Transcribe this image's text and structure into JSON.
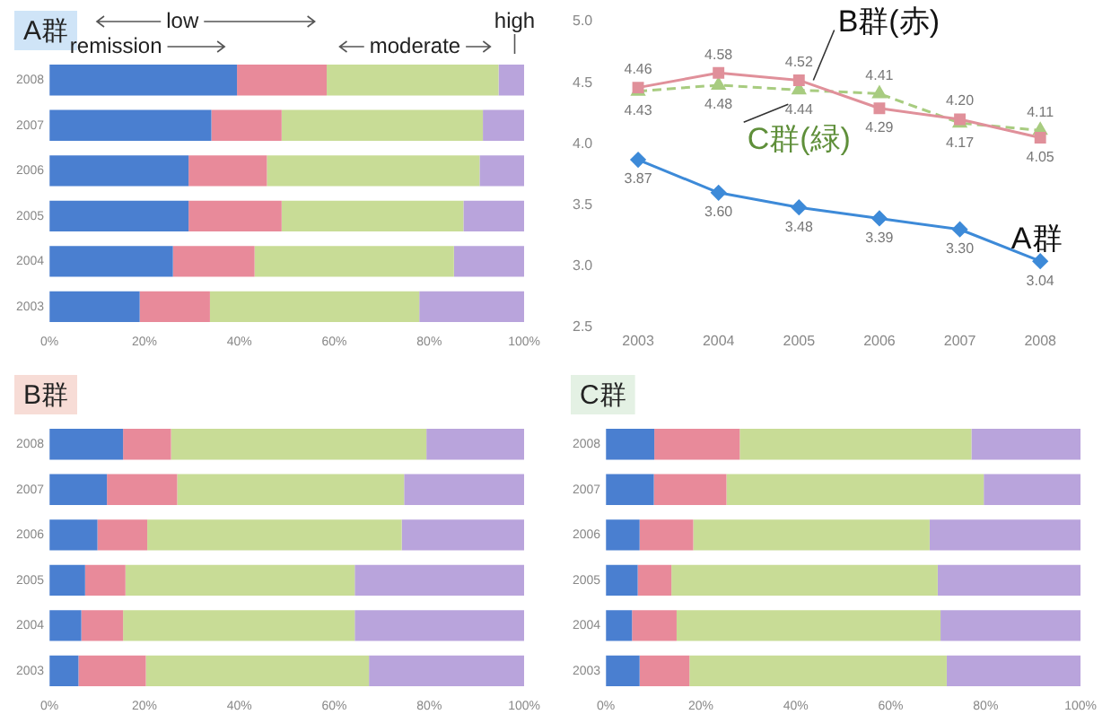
{
  "chart_data": [
    {
      "type": "bar",
      "title": "A群",
      "orientation": "horizontal",
      "stacked": true,
      "legend": false,
      "grid": false,
      "annotations": [
        "low",
        "remission",
        "moderate",
        "high"
      ],
      "categories": [
        "2008",
        "2007",
        "2006",
        "2005",
        "2004",
        "2003"
      ],
      "xlim": [
        0,
        100
      ],
      "xticks": [
        {
          "value": 0,
          "label": "0%"
        },
        {
          "value": 20,
          "label": "20%"
        },
        {
          "value": 40,
          "label": "40%"
        },
        {
          "value": 60,
          "label": "60%"
        },
        {
          "value": 80,
          "label": "80%"
        },
        {
          "value": 100,
          "label": "100%"
        }
      ],
      "series": [
        {
          "color": "#4a7fd0",
          "values": [
            39.5,
            34.1,
            29.3,
            29.3,
            26.0,
            19.0
          ]
        },
        {
          "color": "#e88a9a",
          "values": [
            18.9,
            14.8,
            16.5,
            19.6,
            17.2,
            14.8
          ]
        },
        {
          "color": "#c8dc96",
          "values": [
            36.2,
            42.4,
            44.8,
            38.3,
            42.0,
            44.1
          ]
        },
        {
          "color": "#b9a4dc",
          "values": [
            5.4,
            8.7,
            9.4,
            12.8,
            14.8,
            22.1
          ]
        }
      ]
    },
    {
      "type": "line",
      "legend": false,
      "grid": false,
      "categories": [
        "2003",
        "2004",
        "2005",
        "2006",
        "2007",
        "2008"
      ],
      "ylim": [
        2.5,
        5.0
      ],
      "yticks": [
        2.5,
        {
          "value": 3,
          "label": "3.0"
        },
        3.5,
        {
          "value": 4,
          "label": "4.0"
        },
        4.5,
        {
          "value": 5,
          "label": "5.0"
        }
      ],
      "series": [
        {
          "name": "A群",
          "color": "#3d8ad8",
          "marker": "diamond",
          "values": [
            3.87,
            3.6,
            3.48,
            3.39,
            3.3,
            3.04
          ],
          "value_labels": [
            "3.87",
            "3.60",
            "3.48",
            "3.39",
            "3.30",
            "3.04"
          ]
        },
        {
          "name": "B群(赤)",
          "color": "#e0909a",
          "marker": "square",
          "values": [
            4.46,
            4.58,
            4.52,
            4.29,
            4.2,
            4.05
          ],
          "value_labels": [
            "4.46",
            "4.58",
            "4.52",
            "4.29",
            "4.20",
            "4.05"
          ]
        },
        {
          "name": "C群(緑)",
          "color": "#a8cc80",
          "marker": "triangle",
          "line_style": "dashed",
          "values": [
            4.43,
            4.48,
            4.44,
            4.41,
            4.17,
            4.11
          ],
          "value_labels": [
            "4.43",
            "4.48",
            "4.44",
            "4.41",
            "4.17",
            "4.11"
          ]
        }
      ]
    },
    {
      "type": "bar",
      "title": "B群",
      "orientation": "horizontal",
      "stacked": true,
      "legend": false,
      "grid": false,
      "categories": [
        "2008",
        "2007",
        "2006",
        "2005",
        "2004",
        "2003"
      ],
      "xlim": [
        0,
        100
      ],
      "xticks": [
        {
          "value": 0,
          "label": "0%"
        },
        {
          "value": 20,
          "label": "20%"
        },
        {
          "value": 40,
          "label": "40%"
        },
        {
          "value": 60,
          "label": "60%"
        },
        {
          "value": 80,
          "label": "80%"
        },
        {
          "value": 100,
          "label": "100%"
        }
      ],
      "series": [
        {
          "color": "#4a7fd0",
          "values": [
            15.5,
            12.1,
            10.1,
            7.5,
            6.7,
            6.1
          ]
        },
        {
          "color": "#e88a9a",
          "values": [
            10.1,
            14.8,
            10.5,
            8.5,
            8.8,
            14.2
          ]
        },
        {
          "color": "#c8dc96",
          "values": [
            53.8,
            47.8,
            53.6,
            48.3,
            48.8,
            47.0
          ]
        },
        {
          "color": "#b9a4dc",
          "values": [
            20.6,
            25.3,
            25.8,
            35.7,
            35.7,
            32.7
          ]
        }
      ]
    },
    {
      "type": "bar",
      "title": "C群",
      "orientation": "horizontal",
      "stacked": true,
      "legend": false,
      "grid": false,
      "categories": [
        "2008",
        "2007",
        "2006",
        "2005",
        "2004",
        "2003"
      ],
      "xlim": [
        0,
        100
      ],
      "xticks": [
        {
          "value": 0,
          "label": "0%"
        },
        {
          "value": 20,
          "label": "20%"
        },
        {
          "value": 40,
          "label": "40%"
        },
        {
          "value": 60,
          "label": "60%"
        },
        {
          "value": 80,
          "label": "80%"
        },
        {
          "value": 100,
          "label": "100%"
        }
      ],
      "series": [
        {
          "color": "#4a7fd0",
          "values": [
            10.2,
            10.1,
            7.1,
            6.7,
            5.5,
            7.1
          ]
        },
        {
          "color": "#e88a9a",
          "values": [
            18.0,
            15.3,
            11.3,
            7.1,
            9.4,
            10.5
          ]
        },
        {
          "color": "#c8dc96",
          "values": [
            48.8,
            54.2,
            49.8,
            56.1,
            55.6,
            54.2
          ]
        },
        {
          "color": "#b9a4dc",
          "values": [
            23.0,
            20.4,
            31.8,
            30.1,
            29.5,
            28.2
          ]
        }
      ]
    }
  ]
}
